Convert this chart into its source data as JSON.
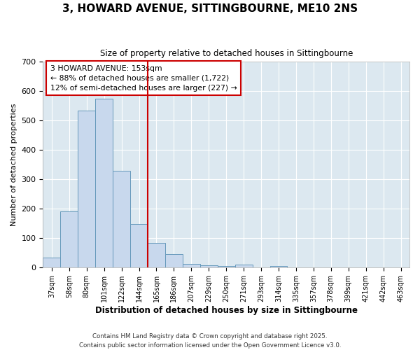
{
  "title1": "3, HOWARD AVENUE, SITTINGBOURNE, ME10 2NS",
  "title2": "Size of property relative to detached houses in Sittingbourne",
  "xlabel": "Distribution of detached houses by size in Sittingbourne",
  "ylabel": "Number of detached properties",
  "bin_labels": [
    "37sqm",
    "58sqm",
    "80sqm",
    "101sqm",
    "122sqm",
    "144sqm",
    "165sqm",
    "186sqm",
    "207sqm",
    "229sqm",
    "250sqm",
    "271sqm",
    "293sqm",
    "314sqm",
    "335sqm",
    "357sqm",
    "378sqm",
    "399sqm",
    "421sqm",
    "442sqm",
    "463sqm"
  ],
  "bar_values": [
    35,
    192,
    533,
    575,
    330,
    148,
    85,
    47,
    12,
    8,
    5,
    10,
    0,
    5,
    0,
    0,
    0,
    0,
    0,
    0,
    0
  ],
  "bar_color": "#c8d8ed",
  "bar_edge_color": "#6699bb",
  "vline_x_index": 6,
  "vline_color": "#cc0000",
  "annotation_title": "3 HOWARD AVENUE: 153sqm",
  "annotation_line1": "← 88% of detached houses are smaller (1,722)",
  "annotation_line2": "12% of semi-detached houses are larger (227) →",
  "annotation_box_color": "#cc0000",
  "ylim": [
    0,
    700
  ],
  "yticks": [
    0,
    100,
    200,
    300,
    400,
    500,
    600,
    700
  ],
  "plot_bg_color": "#dce8f0",
  "figure_bg_color": "#ffffff",
  "grid_color": "#ffffff",
  "footer1": "Contains HM Land Registry data © Crown copyright and database right 2025.",
  "footer2": "Contains public sector information licensed under the Open Government Licence v3.0."
}
